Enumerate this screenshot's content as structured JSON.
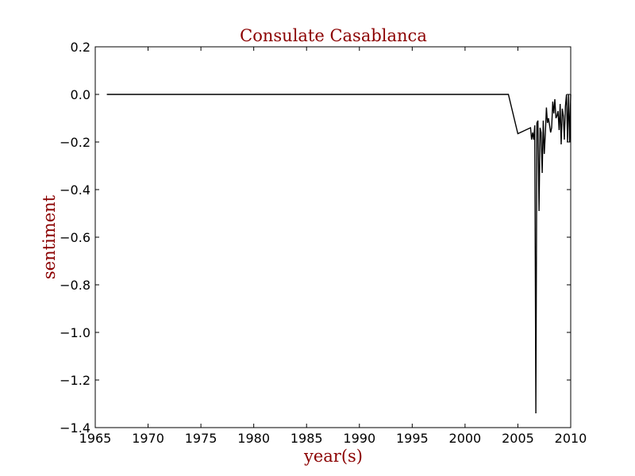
{
  "chart_data": {
    "type": "line",
    "title": "Consulate Casablanca",
    "xlabel": "year(s)",
    "ylabel": "sentiment",
    "xlim": [
      1965,
      2010
    ],
    "ylim": [
      -1.4,
      0.2
    ],
    "xticks": [
      1965,
      1970,
      1975,
      1980,
      1985,
      1990,
      1995,
      2000,
      2005,
      2010
    ],
    "yticks": [
      0.2,
      0.0,
      -0.2,
      -0.4,
      -0.6,
      -0.8,
      -1.0,
      -1.2,
      -1.4
    ],
    "ytick_labels": [
      "0.2",
      "0.0",
      "−0.2",
      "−0.4",
      "−0.6",
      "−0.8",
      "−1.0",
      "−1.2",
      "−1.4"
    ],
    "grid": false,
    "legend": "none",
    "colors": {
      "title": "#8b0000",
      "axis_label": "#8b0000",
      "line": "#000000",
      "frame": "#000000"
    },
    "series": [
      {
        "x": [
          1966.1,
          2004.1,
          2005.0,
          2006.2,
          2006.3,
          2006.4,
          2006.5,
          2006.6,
          2006.7,
          2006.8,
          2006.9,
          2007.0,
          2007.1,
          2007.2,
          2007.3,
          2007.4,
          2007.5,
          2007.6,
          2007.7,
          2007.8,
          2007.9,
          2008.0,
          2008.1,
          2008.2,
          2008.3,
          2008.4,
          2008.5,
          2008.6,
          2008.7,
          2008.8,
          2008.9,
          2009.0,
          2009.1,
          2009.2,
          2009.3,
          2009.4,
          2009.5,
          2009.6,
          2009.7,
          2009.8,
          2009.9,
          2010.0
        ],
        "y": [
          0.0,
          0.0,
          -0.165,
          -0.14,
          -0.19,
          -0.16,
          -0.19,
          -0.13,
          -1.34,
          -0.12,
          -0.11,
          -0.49,
          -0.14,
          -0.16,
          -0.33,
          -0.11,
          -0.25,
          -0.16,
          -0.055,
          -0.12,
          -0.1,
          -0.13,
          -0.16,
          -0.14,
          -0.03,
          -0.08,
          -0.02,
          -0.1,
          -0.09,
          -0.07,
          -0.15,
          -0.04,
          -0.21,
          -0.06,
          -0.09,
          -0.19,
          -0.05,
          0.0,
          -0.2,
          0.0,
          -0.2,
          0.0
        ]
      }
    ]
  }
}
